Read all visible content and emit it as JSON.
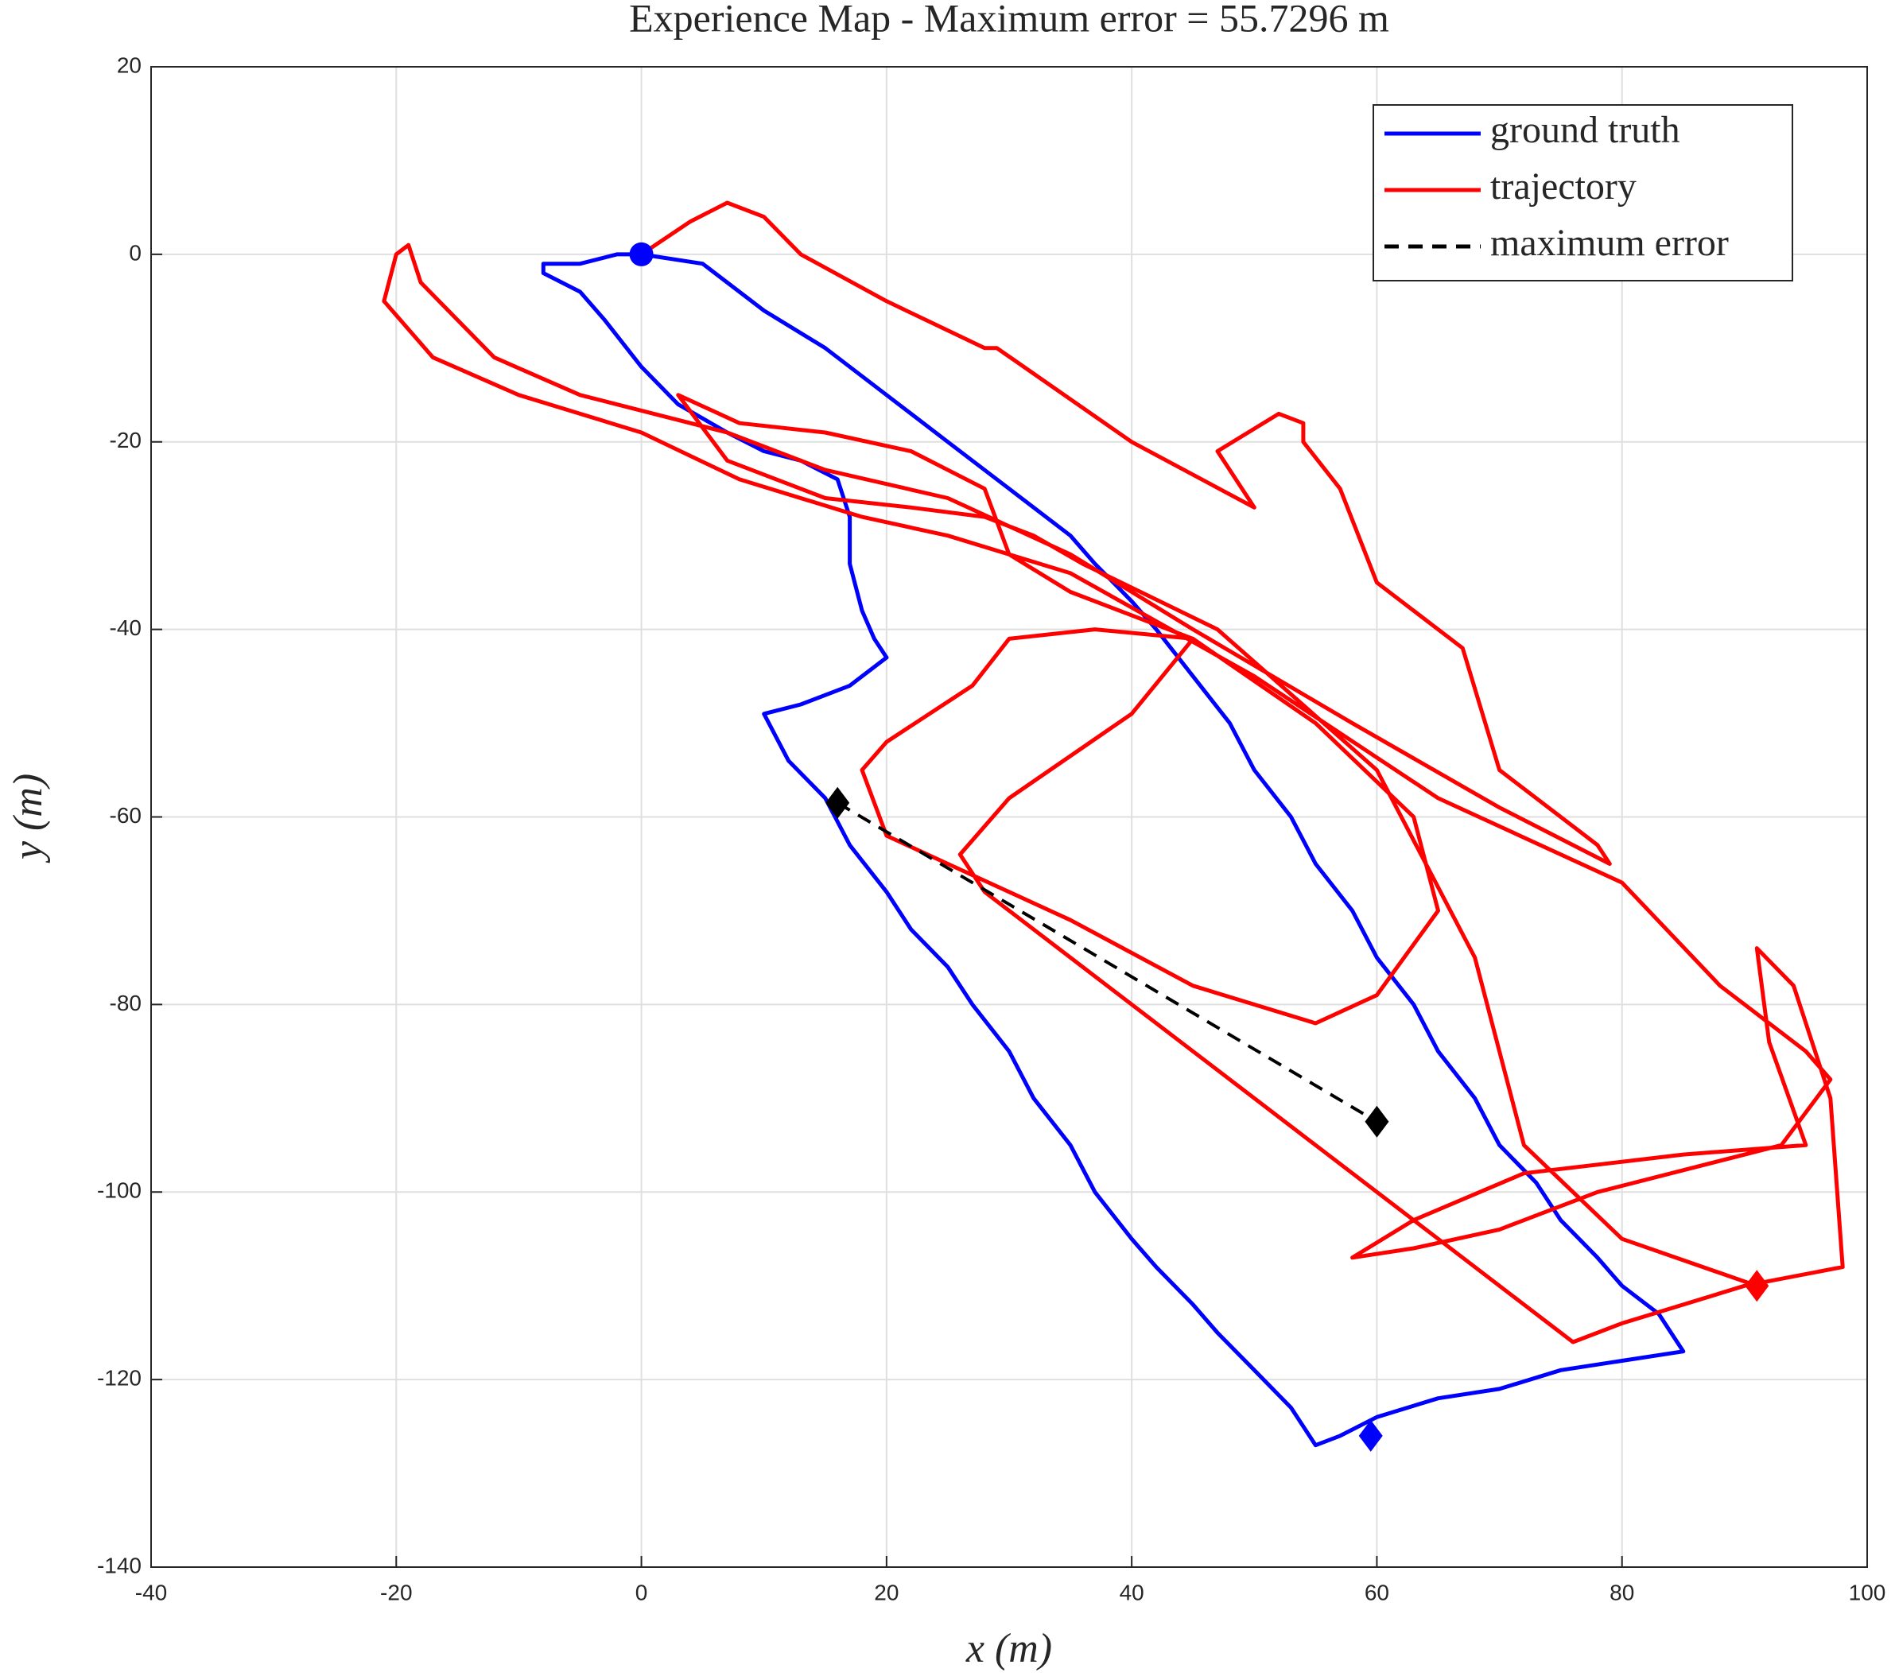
{
  "chart_data": {
    "type": "line",
    "title": "Experience Map - Maximum error = 55.7296 m",
    "x_label": "x (m)",
    "y_label": "y (m)",
    "xlim": [
      -40,
      100
    ],
    "ylim": [
      -140,
      20
    ],
    "xticks": [
      -40,
      -20,
      0,
      20,
      40,
      60,
      80,
      100
    ],
    "yticks": [
      -140,
      -120,
      -100,
      -80,
      -60,
      -40,
      -20,
      0,
      20
    ],
    "grid": true,
    "legend": "upper right",
    "series": [
      {
        "name": "ground truth",
        "color": "#0000ff",
        "x": [
          0,
          5,
          10,
          15,
          20,
          25,
          30,
          35,
          37,
          40,
          42,
          45,
          48,
          50,
          53,
          55,
          58,
          60,
          63,
          65,
          68,
          70,
          73,
          75,
          78,
          80,
          83,
          84,
          85,
          80,
          75,
          70,
          65,
          60,
          57,
          55,
          53,
          50,
          47,
          45,
          42,
          40,
          37,
          35,
          32,
          30,
          27,
          25,
          22,
          20,
          17,
          15,
          12,
          10,
          13,
          17,
          20,
          19,
          18,
          17,
          17,
          16,
          13,
          10,
          7,
          3,
          0,
          -3,
          -5,
          -8,
          -8,
          -5,
          -2,
          0
        ],
        "y": [
          0,
          -1,
          -6,
          -10,
          -15,
          -20,
          -25,
          -30,
          -33,
          -37,
          -40,
          -45,
          -50,
          -55,
          -60,
          -65,
          -70,
          -75,
          -80,
          -85,
          -90,
          -95,
          -99,
          -103,
          -107,
          -110,
          -113,
          -115,
          -117,
          -118,
          -119,
          -121,
          -122,
          -124,
          -126,
          -127,
          -123,
          -119,
          -115,
          -112,
          -108,
          -105,
          -100,
          -95,
          -90,
          -85,
          -80,
          -76,
          -72,
          -68,
          -63,
          -58,
          -54,
          -49,
          -48,
          -46,
          -43,
          -41,
          -38,
          -33,
          -28,
          -24,
          -22,
          -21,
          -19,
          -16,
          -12,
          -7,
          -4,
          -2,
          -1,
          -1,
          0,
          0
        ]
      },
      {
        "name": "trajectory",
        "color": "#ff0000",
        "x": [
          0,
          4,
          7,
          10,
          13,
          20,
          28,
          29,
          40,
          50,
          47,
          52,
          54,
          54,
          57,
          60,
          67,
          70,
          78,
          79,
          70,
          58,
          45,
          35,
          25,
          15,
          7,
          -5,
          -12,
          -18,
          -19,
          -20,
          -21,
          -17,
          -10,
          0,
          8,
          18,
          25,
          35,
          50,
          65,
          80,
          88,
          95,
          97,
          93,
          78,
          70,
          63,
          58,
          63,
          72,
          85,
          95,
          92,
          91,
          94,
          97,
          98,
          90,
          80,
          76,
          72,
          65,
          55,
          45,
          35,
          28,
          26,
          30,
          40,
          45,
          37,
          30,
          27,
          20,
          18,
          20,
          25,
          35,
          45,
          55,
          60,
          65,
          63,
          55,
          45,
          35,
          30,
          28,
          22,
          15,
          8,
          3,
          7,
          15,
          22,
          28,
          32,
          36,
          47,
          60,
          68,
          72,
          80,
          91
        ],
        "y": [
          0,
          3.5,
          5.5,
          4,
          0,
          -5,
          -10,
          -10,
          -20,
          -27,
          -21,
          -17,
          -18,
          -20,
          -25,
          -35,
          -42,
          -55,
          -63,
          -65,
          -59,
          -50,
          -40,
          -32,
          -26,
          -23,
          -19,
          -15,
          -11,
          -3,
          1,
          0,
          -5,
          -11,
          -15,
          -19,
          -24,
          -28,
          -30,
          -34,
          -45,
          -58,
          -67,
          -78,
          -85,
          -88,
          -95,
          -100,
          -104,
          -106,
          -107,
          -103,
          -98,
          -96,
          -95,
          -84,
          -74,
          -78,
          -90,
          -108,
          -110,
          -114,
          -116,
          -112,
          -105,
          -95,
          -85,
          -75,
          -68,
          -64,
          -58,
          -49,
          -41,
          -40,
          -41,
          -46,
          -52,
          -55,
          -62,
          -65,
          -71,
          -78,
          -82,
          -79,
          -70,
          -60,
          -50,
          -41,
          -36,
          -32,
          -25,
          -21,
          -19,
          -18,
          -15,
          -22,
          -26,
          -27,
          -28,
          -30,
          -33,
          -40,
          -55,
          -75,
          -95,
          -105,
          -110
        ]
      },
      {
        "name": "maximum error",
        "color": "#000000",
        "dashed": true,
        "x": [
          16,
          60
        ],
        "y": [
          -58.5,
          -92.5
        ]
      }
    ],
    "markers": [
      {
        "x": 0,
        "y": 0,
        "color": "#0000ff",
        "shape": "circle"
      },
      {
        "x": 59.5,
        "y": -126,
        "color": "#0000ff",
        "shape": "diamond"
      },
      {
        "x": 91,
        "y": -110,
        "color": "#ff0000",
        "shape": "diamond"
      },
      {
        "x": 16,
        "y": -58.5,
        "color": "#000000",
        "shape": "diamond"
      },
      {
        "x": 60,
        "y": -92.5,
        "color": "#000000",
        "shape": "diamond"
      }
    ]
  }
}
